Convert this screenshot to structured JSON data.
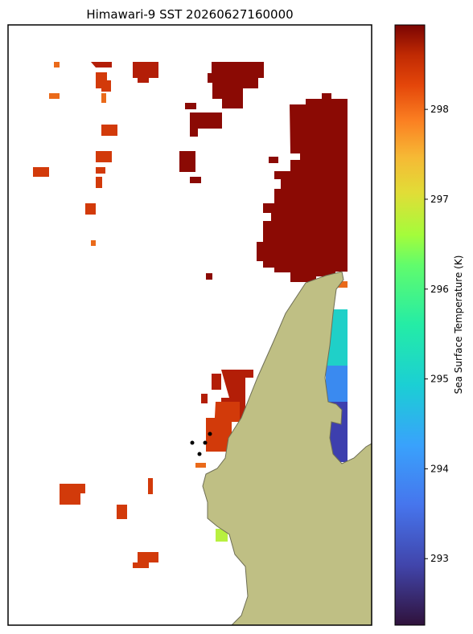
{
  "title": "Himawari-9 SST 20260627160000",
  "colorbar": {
    "label": "Sea Surface Temperature (K)",
    "lim": [
      292.26,
      298.94
    ],
    "ticks": [
      293,
      294,
      295,
      296,
      297,
      298
    ]
  }
}
